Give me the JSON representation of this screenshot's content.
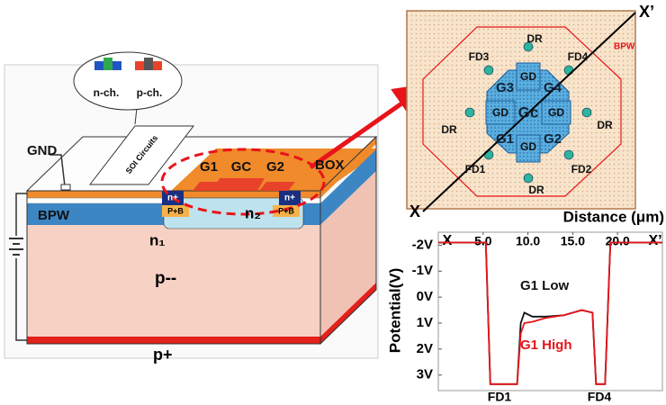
{
  "device": {
    "bubble": [
      "n-ch.",
      "p-ch."
    ],
    "soi": "SOI Circuits",
    "gnd": "GND",
    "gates": [
      "G1",
      "GC",
      "G2"
    ],
    "box": "BOX",
    "bpw": "BPW",
    "nplus": [
      "n+",
      "n+"
    ],
    "pplus": [
      "P+B",
      "P+B"
    ],
    "n2": "n₂",
    "n1": "n₁",
    "pminus": "p--",
    "psub": "p+"
  },
  "layout": {
    "axis_end": "X’",
    "axis_start": "X",
    "bpw": "BPW",
    "dr": [
      "DR",
      "DR",
      "DR",
      "DR"
    ],
    "fd": [
      "FD3",
      "FD4",
      "FD1",
      "FD2"
    ],
    "gates": [
      "G3",
      "G4",
      "G1",
      "G2",
      "Gc"
    ],
    "gd": [
      "GD",
      "GD",
      "GD",
      "GD"
    ]
  },
  "chart_data": {
    "type": "line",
    "x_label": "Distance (μm)",
    "y_label": "Potential(V)",
    "annotations": [
      "X",
      "X’",
      "FD1",
      "FD4"
    ],
    "x": [
      0,
      5.3,
      5.8,
      8.8,
      9.2,
      9.6,
      10.5,
      12,
      14,
      16,
      17.2,
      17.6,
      18.6,
      19.2,
      20,
      25
    ],
    "series": [
      {
        "name": "G1 Low",
        "color": "#111111",
        "values": [
          -2.1,
          -2.1,
          3.35,
          3.35,
          1.0,
          0.6,
          0.75,
          0.75,
          0.7,
          0.5,
          0.6,
          3.35,
          3.35,
          -2.1,
          -2.1,
          -2.1
        ]
      },
      {
        "name": "G1 High",
        "color": "#e8141a",
        "values": [
          -2.1,
          -2.1,
          3.35,
          3.35,
          1.4,
          1.0,
          0.95,
          0.8,
          0.7,
          0.5,
          0.6,
          3.35,
          3.35,
          -2.1,
          -2.1,
          -2.1
        ]
      }
    ],
    "xlim": [
      0,
      25
    ],
    "xticks": [
      {
        "value": 5,
        "label": "5.0"
      },
      {
        "value": 10,
        "label": "10.0"
      },
      {
        "value": 15,
        "label": "15.0"
      },
      {
        "value": 20,
        "label": "20.0"
      }
    ],
    "ylim": [
      -2.5,
      3.6
    ],
    "y_inverted": true,
    "yticks": [
      {
        "value": -2,
        "label": "-2V"
      },
      {
        "value": -1,
        "label": "-1V"
      },
      {
        "value": 0,
        "label": "0V"
      },
      {
        "value": 1,
        "label": "1V"
      },
      {
        "value": 2,
        "label": "2V"
      },
      {
        "value": 3,
        "label": "3V"
      }
    ]
  }
}
